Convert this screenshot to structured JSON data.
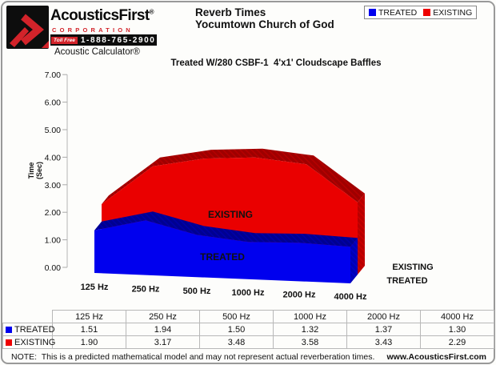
{
  "header": {
    "logo": {
      "brand": "AcousticsFirst",
      "reg": "®",
      "corporation": "CORPORATION",
      "toll_free": "Toll Free",
      "phone": "1-888-765-2900",
      "product": "Acoustic Calculator®"
    },
    "title_line1": "Reverb Times",
    "title_line2": "Yocumtown Church of God",
    "legend": [
      {
        "label": "TREATED",
        "color": "#0000ee"
      },
      {
        "label": "EXISTING",
        "color": "#ee0000"
      }
    ]
  },
  "chart_data": {
    "type": "area",
    "style": "3d-area",
    "title": "Reverb Times — Yocumtown Church of God",
    "subtitle": "Treated W/280 CSBF-1  4'x1' Cloudscape Baffles",
    "categories": [
      "125 Hz",
      "250 Hz",
      "500 Hz",
      "1000 Hz",
      "2000 Hz",
      "4000 Hz"
    ],
    "series": [
      {
        "name": "TREATED",
        "color": "#0000ee",
        "top_color": "#000095",
        "side_color": "#0000c4",
        "values": [
          1.51,
          1.94,
          1.5,
          1.32,
          1.37,
          1.3
        ]
      },
      {
        "name": "EXISTING",
        "color": "#ea0000",
        "top_color": "#9e0000",
        "side_color": "#c00000",
        "values": [
          1.9,
          3.17,
          3.48,
          3.58,
          3.43,
          2.29
        ]
      }
    ],
    "ylabel_line1": "Time",
    "ylabel_line2": "(Sec)",
    "ylim": [
      0,
      7
    ],
    "ytick_labels": [
      "0.00",
      "1.00",
      "2.00",
      "3.00",
      "4.00",
      "5.00",
      "6.00",
      "7.00"
    ],
    "grid": false,
    "legend_position": "top-right",
    "depth_axis_labels": [
      "EXISTING",
      "TREATED"
    ]
  },
  "table": {
    "headers": [
      "",
      "125 Hz",
      "250 Hz",
      "500 Hz",
      "1000 Hz",
      "2000 Hz",
      "4000 Hz"
    ],
    "rows": [
      {
        "label": "TREATED",
        "color": "#0000ee",
        "values": [
          "1.51",
          "1.94",
          "1.50",
          "1.32",
          "1.37",
          "1.30"
        ]
      },
      {
        "label": "EXISTING",
        "color": "#ee0000",
        "values": [
          "1.90",
          "3.17",
          "3.48",
          "3.58",
          "3.43",
          "2.29"
        ]
      }
    ]
  },
  "footer": {
    "note": "NOTE:  This is a predicted mathematical model and may not represent actual reverberation times.",
    "website": "www.AcousticsFirst.com"
  }
}
